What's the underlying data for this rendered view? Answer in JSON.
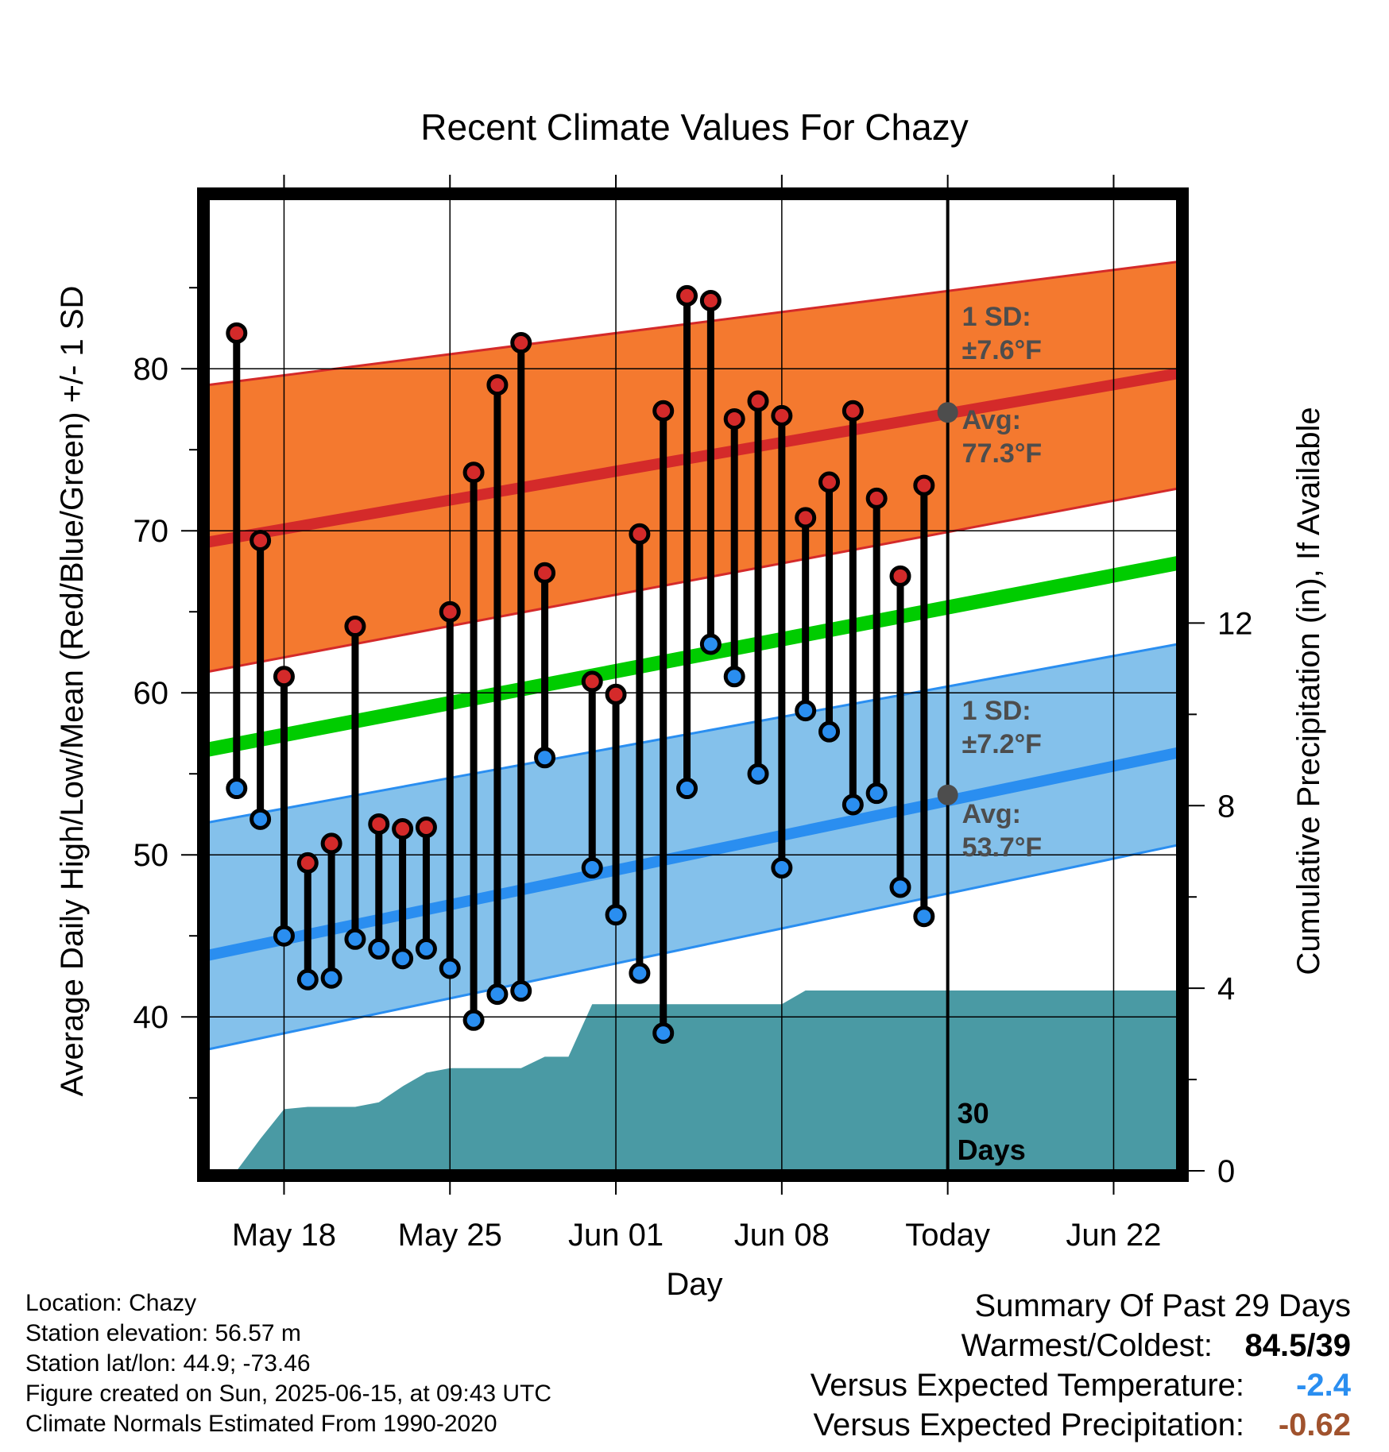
{
  "colors": {
    "high_marker": "#d42a2a",
    "low_marker": "#2a8ef0",
    "mean_line": "#00cc00",
    "high_band": "#f4792f",
    "high_band_edge": "#d42a2a",
    "high_avg_line": "#d42a2a",
    "low_band": "#84c1eb",
    "low_band_edge": "#2a8ef0",
    "low_avg_line": "#2a8ef0",
    "precip_fill": "#4a9aa4",
    "temp_anomaly": "#2a8ef0",
    "precip_anomaly": "#a0522d",
    "today_marker": "#4d4d4d"
  },
  "chart_data": {
    "type": "line",
    "title": "Recent Climate Values For Chazy",
    "xlabel": "Day",
    "ylabel": "Average Daily High/Low/Mean (Red/Blue/Green) +/- 1 SD",
    "y2label": "Cumulative Precipitation (in), If Available",
    "ylim": [
      30.5,
      90.5
    ],
    "y2lim": [
      0,
      21.3
    ],
    "yticks": [
      "40",
      "50",
      "60",
      "70",
      "80"
    ],
    "y2ticks": [
      "0",
      "4",
      "8",
      "12"
    ],
    "x_tick_labels": [
      "May 18",
      "May 25",
      "Jun 01",
      "Jun 08",
      "Today",
      "Jun 22"
    ],
    "x_tick_days": [
      18,
      25,
      32,
      39,
      46,
      53
    ],
    "xlim": [
      14.8,
      55.7
    ],
    "today_day": 46,
    "grid": true,
    "daily": {
      "days": [
        16,
        17,
        18,
        19,
        20,
        21,
        22,
        23,
        24,
        25,
        26,
        27,
        28,
        29,
        31,
        32,
        33,
        34,
        35,
        36,
        37,
        38,
        39,
        40,
        41,
        42,
        43,
        44,
        45
      ],
      "highs": [
        82.2,
        69.4,
        61.0,
        49.5,
        50.7,
        64.1,
        51.9,
        51.6,
        51.7,
        65.0,
        73.6,
        79.0,
        81.6,
        67.4,
        60.7,
        59.9,
        69.8,
        77.4,
        84.5,
        84.2,
        76.9,
        78.0,
        77.1,
        70.8,
        73.0,
        77.4,
        72.0,
        67.2,
        72.8
      ],
      "lows": [
        54.1,
        52.2,
        45.0,
        42.3,
        42.4,
        44.8,
        44.2,
        43.6,
        44.2,
        43.0,
        39.8,
        41.4,
        41.6,
        56.0,
        49.2,
        46.3,
        42.7,
        39.0,
        54.1,
        63.0,
        61.0,
        55.0,
        49.2,
        58.9,
        57.6,
        53.1,
        53.8,
        48.0,
        46.2
      ]
    },
    "normals": {
      "x": [
        14.8,
        55.7
      ],
      "avg_high": [
        69.3,
        79.7
      ],
      "high_upper": [
        79.0,
        86.6
      ],
      "high_lower": [
        61.3,
        72.6
      ],
      "avg_low": [
        43.8,
        56.3
      ],
      "low_upper": [
        52.0,
        63.0
      ],
      "low_lower": [
        38.0,
        50.6
      ],
      "mean": [
        56.5,
        68.0
      ]
    },
    "precip": {
      "x": [
        16,
        17,
        18,
        19,
        20,
        21,
        22,
        23,
        24,
        25,
        26,
        27,
        28,
        29,
        30,
        31,
        32,
        33,
        34,
        35,
        36,
        37,
        38,
        39,
        40,
        41,
        55.7
      ],
      "cum": [
        0,
        0.7,
        1.35,
        1.4,
        1.4,
        1.4,
        1.5,
        1.85,
        2.15,
        2.25,
        2.25,
        2.25,
        2.25,
        2.5,
        2.5,
        3.65,
        3.65,
        3.65,
        3.65,
        3.65,
        3.65,
        3.65,
        3.65,
        3.65,
        3.95,
        3.95,
        3.95
      ]
    },
    "annotations": {
      "high_sd_line1": "1 SD:",
      "high_sd_line2": "±7.6°F",
      "high_avg_line1": "Avg:",
      "high_avg_line2": "77.3°F",
      "low_sd_line1": "1 SD:",
      "low_sd_line2": "±7.2°F",
      "low_avg_line1": "Avg:",
      "low_avg_line2": "53.7°F",
      "days_line1": "30",
      "days_line2": "Days",
      "today_high_avg": 77.3,
      "today_low_avg": 53.7
    }
  },
  "footer": {
    "location": "Location: Chazy",
    "elevation": "Station elevation: 56.57 m",
    "latlon": "Station lat/lon: 44.9; -73.46",
    "created": "Figure created on Sun, 2025-06-15, at 09:43 UTC",
    "normals": "Climate Normals Estimated From 1990-2020"
  },
  "summary": {
    "heading": "Summary Of Past 29 Days",
    "warmest_label": "Warmest/Coldest:",
    "warmest_value": "84.5/39",
    "temp_label": "Versus Expected Temperature:",
    "temp_value": "-2.4",
    "precip_label": "Versus Expected Precipitation:",
    "precip_value": "-0.62"
  }
}
